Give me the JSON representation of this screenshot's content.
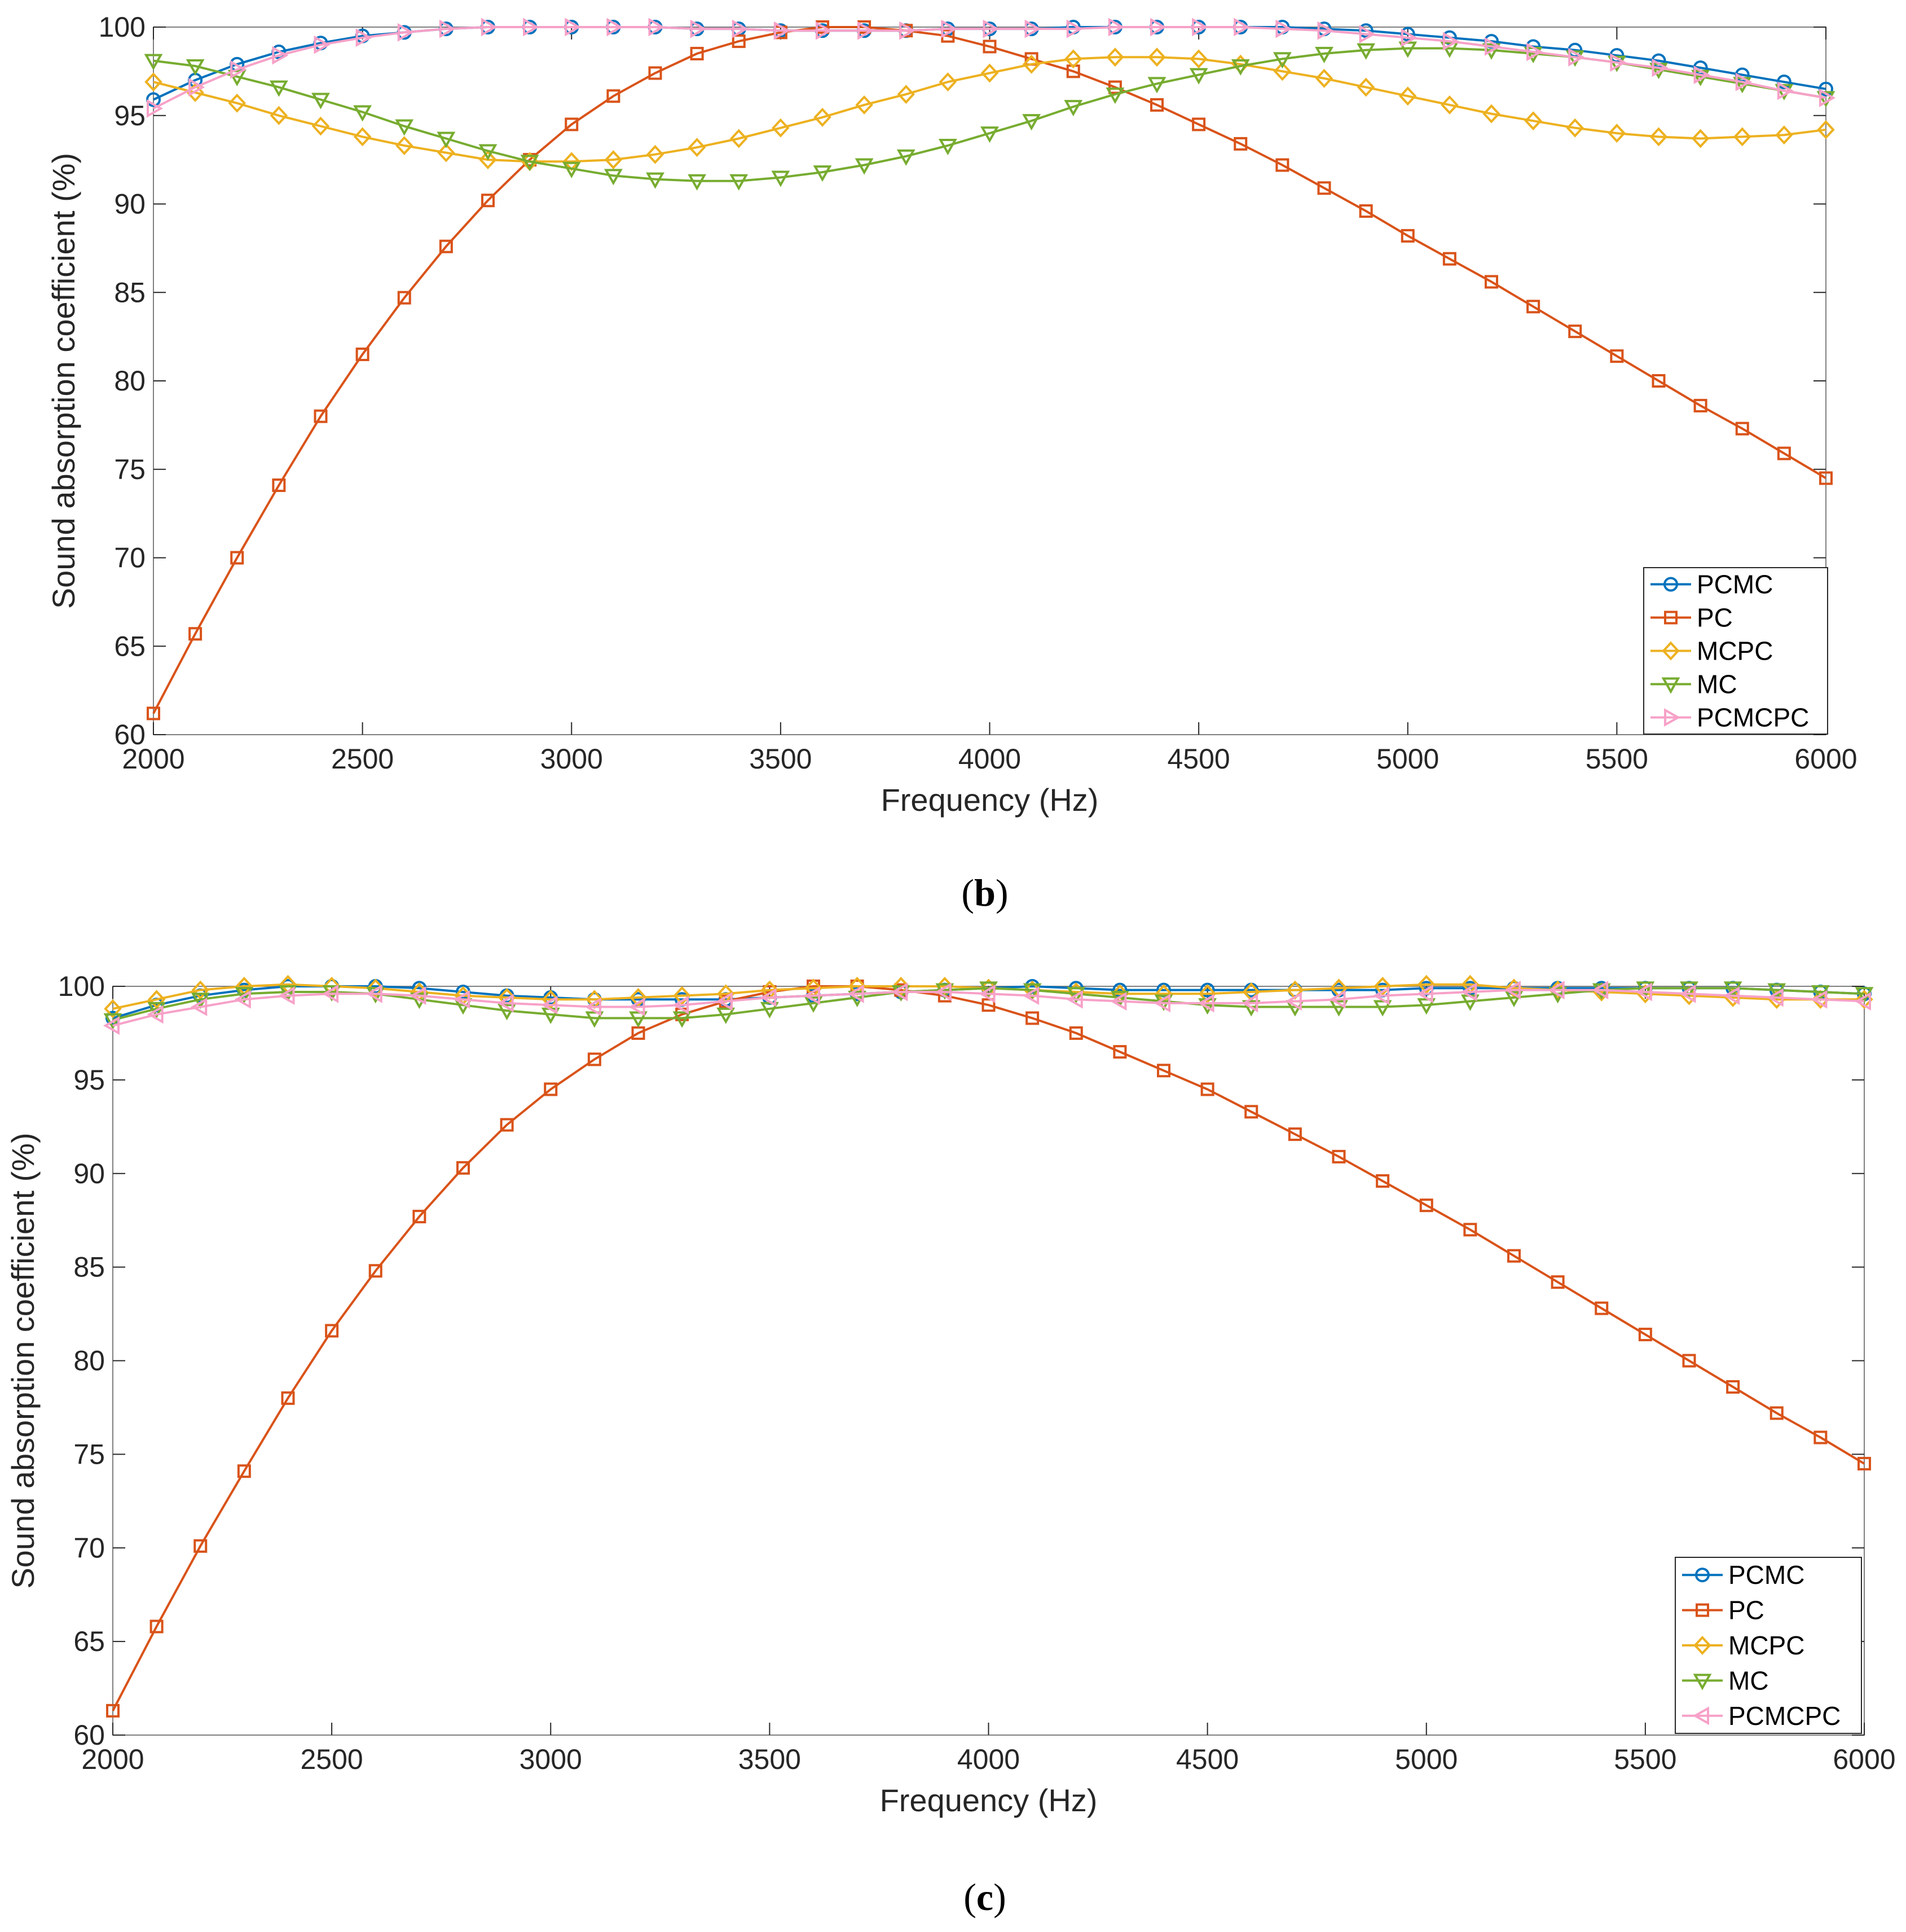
{
  "figure": {
    "panels": [
      {
        "caption_open": "(",
        "caption_letter": "b",
        "caption_close": ")"
      },
      {
        "caption_open": "(",
        "caption_letter": "c",
        "caption_close": ")"
      }
    ]
  },
  "colors": {
    "PCMC": "#0072BD",
    "PC": "#D95319",
    "MCPC": "#EDB120",
    "MC": "#77AC30",
    "PCMCPC": "#F7A1C8",
    "axis": "#262626",
    "grid": "#7f7f7f"
  },
  "markers": {
    "PCMC": "circle",
    "PC": "square",
    "MCPC": "diamond",
    "MC": "triangle-down",
    "PCMCPC-b": "triangle-right",
    "PCMCPC-c": "triangle-left"
  },
  "chart_data": [
    {
      "type": "line",
      "xlabel": "Frequency (Hz)",
      "ylabel": "Sound absorption coefficient (%)",
      "xlim": [
        2000,
        6000
      ],
      "ylim": [
        60,
        100
      ],
      "xticks": [
        2000,
        2500,
        3000,
        3500,
        4000,
        4500,
        5000,
        5500,
        6000
      ],
      "yticks": [
        60,
        65,
        70,
        75,
        80,
        85,
        90,
        95,
        100
      ],
      "grid": false,
      "legend_position": "bottom-right",
      "x": [
        2000,
        2100,
        2200,
        2300,
        2400,
        2500,
        2600,
        2700,
        2800,
        2900,
        3000,
        3100,
        3200,
        3300,
        3400,
        3500,
        3600,
        3700,
        3800,
        3900,
        4000,
        4100,
        4200,
        4300,
        4400,
        4500,
        4600,
        4700,
        4800,
        4900,
        5000,
        5100,
        5200,
        5300,
        5400,
        5500,
        5600,
        5700,
        5800,
        5900,
        6000
      ],
      "series": [
        {
          "name": "PCMC",
          "values": [
            95.9,
            97.0,
            97.9,
            98.6,
            99.1,
            99.5,
            99.7,
            99.9,
            100,
            100,
            100,
            100,
            100,
            99.9,
            99.9,
            99.8,
            99.8,
            99.8,
            99.8,
            99.9,
            99.9,
            99.9,
            100,
            100,
            100,
            100,
            100,
            100,
            99.9,
            99.8,
            99.6,
            99.4,
            99.2,
            98.9,
            98.7,
            98.4,
            98.1,
            97.7,
            97.3,
            96.9,
            96.5
          ]
        },
        {
          "name": "PC",
          "values": [
            61.2,
            65.7,
            70.0,
            74.1,
            78.0,
            81.5,
            84.7,
            87.6,
            90.2,
            92.5,
            94.5,
            96.1,
            97.4,
            98.5,
            99.2,
            99.7,
            100,
            100,
            99.8,
            99.5,
            98.9,
            98.2,
            97.5,
            96.6,
            95.6,
            94.5,
            93.4,
            92.2,
            90.9,
            89.6,
            88.2,
            86.9,
            85.6,
            84.2,
            82.8,
            81.4,
            80.0,
            78.6,
            77.3,
            75.9,
            74.5
          ]
        },
        {
          "name": "MCPC",
          "values": [
            96.9,
            96.3,
            95.7,
            95.0,
            94.4,
            93.8,
            93.3,
            92.9,
            92.5,
            92.4,
            92.4,
            92.5,
            92.8,
            93.2,
            93.7,
            94.3,
            94.9,
            95.6,
            96.2,
            96.9,
            97.4,
            97.9,
            98.2,
            98.3,
            98.3,
            98.2,
            97.9,
            97.5,
            97.1,
            96.6,
            96.1,
            95.6,
            95.1,
            94.7,
            94.3,
            94.0,
            93.8,
            93.7,
            93.8,
            93.9,
            94.2
          ]
        },
        {
          "name": "MC",
          "values": [
            98.1,
            97.8,
            97.2,
            96.6,
            95.9,
            95.2,
            94.4,
            93.7,
            93.0,
            92.4,
            92.0,
            91.6,
            91.4,
            91.3,
            91.3,
            91.5,
            91.8,
            92.2,
            92.7,
            93.3,
            94.0,
            94.7,
            95.5,
            96.2,
            96.8,
            97.3,
            97.8,
            98.2,
            98.5,
            98.7,
            98.8,
            98.8,
            98.7,
            98.5,
            98.3,
            98.0,
            97.6,
            97.2,
            96.8,
            96.4,
            96.0
          ]
        },
        {
          "name": "PCMCPC",
          "values": [
            95.4,
            96.6,
            97.6,
            98.4,
            99.0,
            99.4,
            99.7,
            99.9,
            100,
            100,
            100,
            100,
            100,
            99.9,
            99.9,
            99.8,
            99.8,
            99.8,
            99.8,
            99.9,
            99.9,
            99.9,
            99.9,
            100,
            100,
            100,
            100,
            99.9,
            99.8,
            99.6,
            99.4,
            99.2,
            98.9,
            98.6,
            98.3,
            98.0,
            97.7,
            97.3,
            96.9,
            96.4,
            96.0
          ]
        }
      ]
    },
    {
      "type": "line",
      "xlabel": "Frequency (Hz)",
      "ylabel": "Sound absorption coefficient (%)",
      "xlim": [
        2000,
        6000
      ],
      "ylim": [
        60,
        100
      ],
      "xticks": [
        2000,
        2500,
        3000,
        3500,
        4000,
        4500,
        5000,
        5500,
        6000
      ],
      "yticks": [
        60,
        65,
        70,
        75,
        80,
        85,
        90,
        95,
        100
      ],
      "grid": false,
      "legend_position": "bottom-right",
      "x": [
        2000,
        2100,
        2200,
        2300,
        2400,
        2500,
        2600,
        2700,
        2800,
        2900,
        3000,
        3100,
        3200,
        3300,
        3400,
        3500,
        3600,
        3700,
        3800,
        3900,
        4000,
        4100,
        4200,
        4300,
        4400,
        4500,
        4600,
        4700,
        4800,
        4900,
        5000,
        5100,
        5200,
        5300,
        5400,
        5500,
        5600,
        5700,
        5800,
        5900,
        6000
      ],
      "series": [
        {
          "name": "PCMC",
          "values": [
            98.3,
            99.0,
            99.5,
            99.8,
            100,
            100,
            100,
            99.9,
            99.7,
            99.5,
            99.4,
            99.3,
            99.3,
            99.3,
            99.3,
            99.4,
            99.5,
            99.6,
            99.7,
            99.8,
            99.9,
            100,
            99.9,
            99.8,
            99.8,
            99.8,
            99.8,
            99.8,
            99.8,
            99.8,
            99.9,
            99.9,
            99.9,
            99.9,
            99.9,
            99.9,
            99.9,
            99.9,
            99.8,
            99.7,
            99.6
          ]
        },
        {
          "name": "PC",
          "values": [
            61.3,
            65.8,
            70.1,
            74.1,
            78.0,
            81.6,
            84.8,
            87.7,
            90.3,
            92.6,
            94.5,
            96.1,
            97.5,
            98.5,
            99.2,
            99.7,
            100,
            100,
            99.8,
            99.5,
            99.0,
            98.3,
            97.5,
            96.5,
            95.5,
            94.5,
            93.3,
            92.1,
            90.9,
            89.6,
            88.3,
            87.0,
            85.6,
            84.2,
            82.8,
            81.4,
            80.0,
            78.6,
            77.2,
            75.9,
            74.5
          ]
        },
        {
          "name": "MCPC",
          "values": [
            98.8,
            99.3,
            99.8,
            100,
            100.1,
            100,
            99.9,
            99.7,
            99.5,
            99.4,
            99.3,
            99.3,
            99.4,
            99.5,
            99.6,
            99.8,
            99.9,
            100,
            100,
            100,
            99.9,
            99.8,
            99.7,
            99.6,
            99.6,
            99.6,
            99.7,
            99.8,
            99.9,
            100,
            100.1,
            100.1,
            99.9,
            99.8,
            99.7,
            99.6,
            99.5,
            99.4,
            99.3,
            99.3,
            99.3
          ]
        },
        {
          "name": "MC",
          "values": [
            98.2,
            98.8,
            99.3,
            99.6,
            99.7,
            99.7,
            99.6,
            99.3,
            99.0,
            98.7,
            98.5,
            98.3,
            98.3,
            98.3,
            98.5,
            98.8,
            99.1,
            99.4,
            99.7,
            99.8,
            99.9,
            99.8,
            99.6,
            99.4,
            99.2,
            99.0,
            98.9,
            98.9,
            98.9,
            98.9,
            99.0,
            99.2,
            99.4,
            99.6,
            99.8,
            99.9,
            99.9,
            99.9,
            99.8,
            99.7,
            99.6
          ]
        },
        {
          "name": "PCMCPC",
          "values": [
            97.9,
            98.5,
            98.9,
            99.3,
            99.5,
            99.6,
            99.6,
            99.5,
            99.3,
            99.1,
            99.0,
            98.9,
            98.9,
            99.0,
            99.2,
            99.4,
            99.5,
            99.6,
            99.7,
            99.7,
            99.6,
            99.5,
            99.3,
            99.2,
            99.1,
            99.1,
            99.1,
            99.2,
            99.3,
            99.5,
            99.6,
            99.7,
            99.8,
            99.8,
            99.8,
            99.7,
            99.6,
            99.5,
            99.4,
            99.3,
            99.2
          ]
        }
      ]
    }
  ]
}
